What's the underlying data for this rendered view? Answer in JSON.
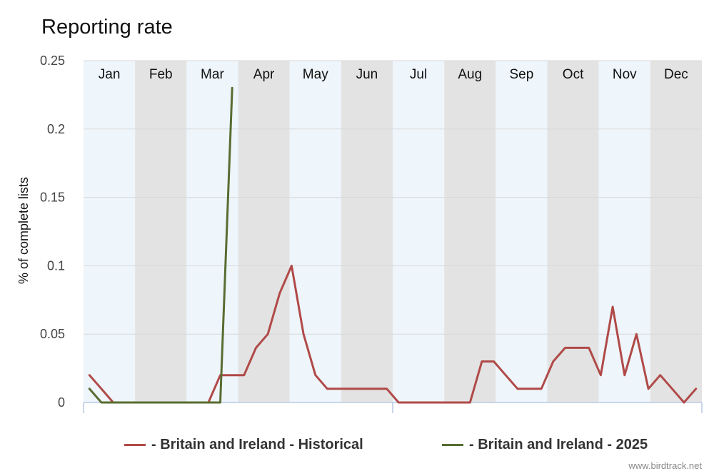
{
  "title": "Reporting rate",
  "credit": "www.birdtrack.net",
  "chart_data": {
    "type": "line",
    "ylabel": "% of complete lists",
    "xlabel": "",
    "ylim": [
      0,
      0.25
    ],
    "yticks": [
      0,
      0.05,
      0.1,
      0.15,
      0.2,
      0.25
    ],
    "ytick_labels": [
      "0",
      "0.05",
      "0.1",
      "0.15",
      "0.2",
      "0.25"
    ],
    "months": [
      "Jan",
      "Feb",
      "Mar",
      "Apr",
      "May",
      "Jun",
      "Jul",
      "Aug",
      "Sep",
      "Oct",
      "Nov",
      "Dec"
    ],
    "x_unit": "week of year",
    "xlim": [
      1,
      52
    ],
    "grid": true,
    "legend_position": "bottom",
    "colors": {
      "historical": "#b04a48",
      "current": "#586d32",
      "band_light": "#eef5fb",
      "band_dark": "#e3e3e3",
      "grid": "#d9d9d9",
      "axis": "#b9c9e6"
    },
    "series": [
      {
        "name": "- Britain and Ireland - Historical",
        "color": "#b04a48",
        "x": [
          1,
          2,
          3,
          4,
          5,
          6,
          7,
          8,
          9,
          10,
          11,
          12,
          13,
          14,
          15,
          16,
          17,
          18,
          19,
          20,
          21,
          22,
          23,
          24,
          25,
          26,
          27,
          28,
          29,
          30,
          31,
          32,
          33,
          34,
          35,
          36,
          37,
          38,
          39,
          40,
          41,
          42,
          43,
          44,
          45,
          46,
          47,
          48,
          49,
          50,
          51,
          52
        ],
        "values": [
          0.02,
          0.01,
          0,
          0,
          0,
          0,
          0,
          0,
          0,
          0,
          0,
          0.02,
          0.02,
          0.02,
          0.04,
          0.05,
          0.08,
          0.1,
          0.05,
          0.02,
          0.01,
          0.01,
          0.01,
          0.01,
          0.01,
          0.01,
          0,
          0,
          0,
          0,
          0,
          0,
          0,
          0.03,
          0.03,
          0.02,
          0.01,
          0.01,
          0.01,
          0.03,
          0.04,
          0.04,
          0.04,
          0.02,
          0.07,
          0.02,
          0.05,
          0.01,
          0.02,
          0.01,
          0,
          0.01
        ]
      },
      {
        "name": "- Britain and Ireland - 2025",
        "color": "#586d32",
        "x": [
          1,
          2,
          3,
          4,
          5,
          6,
          7,
          8,
          9,
          10,
          11,
          12,
          13
        ],
        "values": [
          0.01,
          0,
          0,
          0,
          0,
          0,
          0,
          0,
          0,
          0,
          0,
          0,
          0.23
        ]
      }
    ]
  }
}
